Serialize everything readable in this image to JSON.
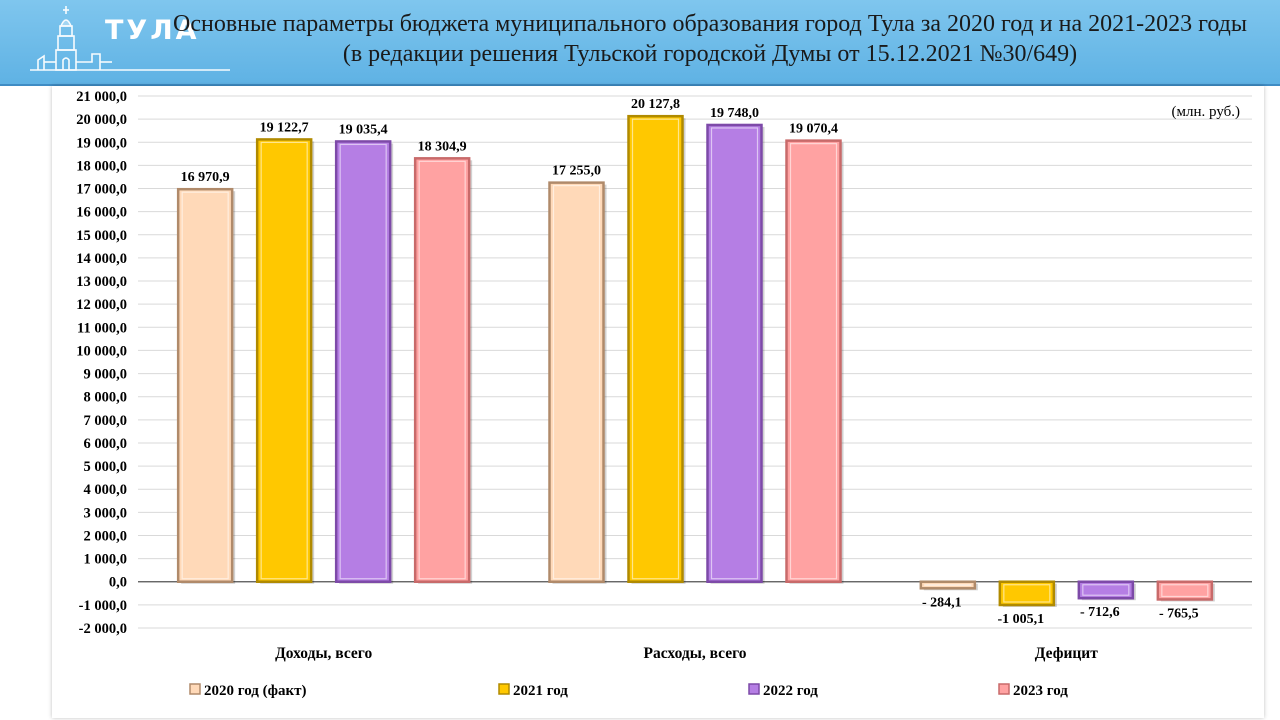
{
  "logo": {
    "text": "ТУЛА"
  },
  "title": {
    "line1": "Основные параметры бюджета муниципального образования город Тула за 2020 год и на 2021-2023 годы",
    "line2": "(в редакции решения Тульской городской Думы от 15.12.2021 №30/649)"
  },
  "chart_data": {
    "type": "bar",
    "unit": "(млн. руб.)",
    "categories": [
      "Доходы, всего",
      "Расходы, всего",
      "Дефицит"
    ],
    "series": [
      {
        "name": "2020 год (факт)",
        "color": "#ffd9b8",
        "edge": "#b08a6a",
        "values": [
          16970.9,
          17255.0,
          -284.1
        ],
        "labels": [
          "16 970,9",
          "17 255,0",
          "- 284,1"
        ]
      },
      {
        "name": "2021 год",
        "color": "#ffc800",
        "edge": "#b08a00",
        "values": [
          19122.7,
          20127.8,
          -1005.1
        ],
        "labels": [
          "19 122,7",
          "20 127,8",
          "-1 005,1"
        ]
      },
      {
        "name": "2022 год",
        "color": "#b57ee4",
        "edge": "#7d4aa8",
        "values": [
          19035.4,
          19748.0,
          -712.6
        ],
        "labels": [
          "19 035,4",
          "19 748,0",
          "- 712,6"
        ]
      },
      {
        "name": "2023 год",
        "color": "#ffa2a2",
        "edge": "#c86a6a",
        "values": [
          18304.9,
          19070.4,
          -765.5
        ],
        "labels": [
          "18 304,9",
          "19 070,4",
          "- 765,5"
        ]
      }
    ],
    "ylim": [
      -2000,
      21000
    ],
    "ytick_step": 1000,
    "ytick_labels": [
      "-2 000,0",
      "-1 000,0",
      "0,0",
      "1 000,0",
      "2 000,0",
      "3 000,0",
      "4 000,0",
      "5 000,0",
      "6 000,0",
      "7 000,0",
      "8 000,0",
      "9 000,0",
      "10 000,0",
      "11 000,0",
      "12 000,0",
      "13 000,0",
      "14 000,0",
      "15 000,0",
      "16 000,0",
      "17 000,0",
      "18 000,0",
      "19 000,0",
      "20 000,0",
      "21 000,0"
    ],
    "grid": true,
    "legend_position": "bottom"
  }
}
